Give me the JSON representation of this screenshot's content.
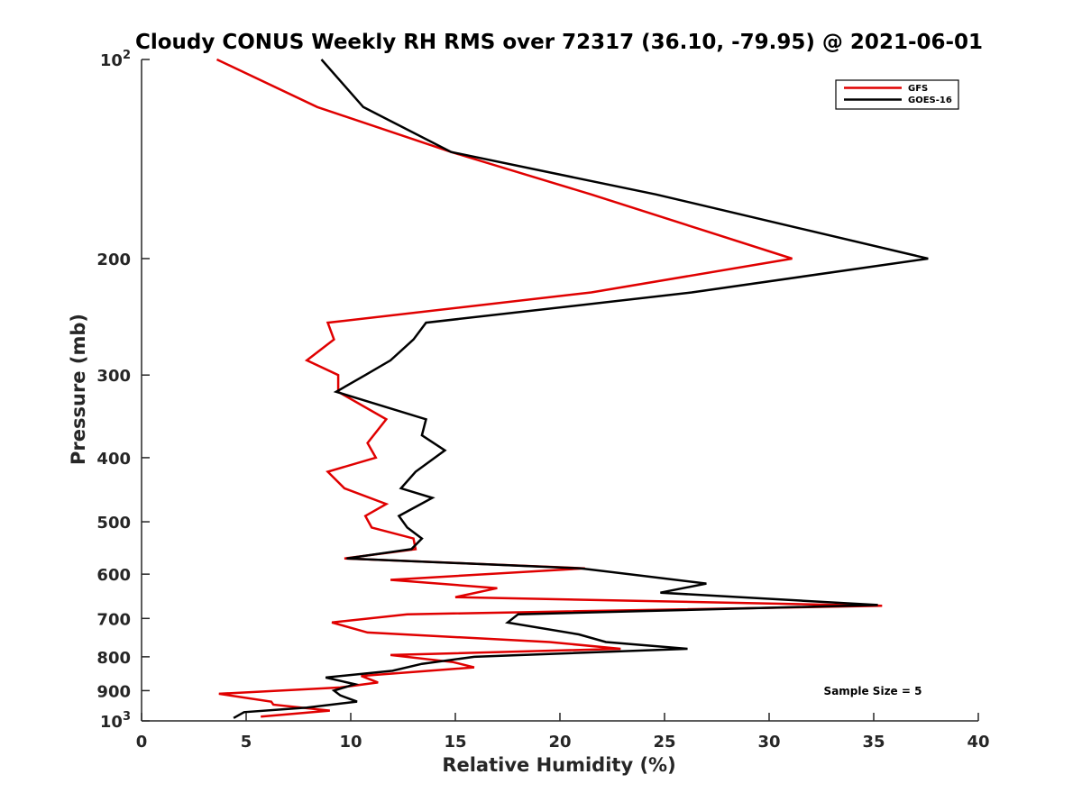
{
  "chart_data": {
    "type": "line",
    "title": "Cloudy CONUS Weekly RH RMS over 72317 (36.10, -79.95) @ 2021-06-01",
    "xlabel": "Relative Humidity (%)",
    "ylabel": "Pressure (mb)",
    "xlim": [
      0,
      40
    ],
    "ylim": [
      100,
      1000
    ],
    "y_scale": "log",
    "y_reversed": true,
    "x_ticks": [
      0,
      5,
      10,
      15,
      20,
      25,
      30,
      35,
      40
    ],
    "x_tick_labels": [
      "0",
      "5",
      "10",
      "15",
      "20",
      "25",
      "30",
      "35",
      "40"
    ],
    "y_ticks": [
      100,
      200,
      300,
      400,
      500,
      600,
      700,
      800,
      900,
      1000
    ],
    "y_tick_labels": [
      {
        "base": "10",
        "sup": "2"
      },
      {
        "base": "200",
        "sup": ""
      },
      {
        "base": "300",
        "sup": ""
      },
      {
        "base": "400",
        "sup": ""
      },
      {
        "base": "500",
        "sup": ""
      },
      {
        "base": "600",
        "sup": ""
      },
      {
        "base": "700",
        "sup": ""
      },
      {
        "base": "800",
        "sup": ""
      },
      {
        "base": "900",
        "sup": ""
      },
      {
        "base": "10",
        "sup": "3"
      }
    ],
    "grid": false,
    "legend_position": "top-right",
    "annotation": "Sample Size = 5",
    "series": [
      {
        "name": "GFS",
        "color": "#e00000",
        "points": [
          {
            "x": 3.6,
            "p": 100
          },
          {
            "x": 8.4,
            "p": 118
          },
          {
            "x": 14.8,
            "p": 138
          },
          {
            "x": 21.5,
            "p": 160
          },
          {
            "x": 31.1,
            "p": 200
          },
          {
            "x": 21.5,
            "p": 225
          },
          {
            "x": 8.9,
            "p": 250
          },
          {
            "x": 9.2,
            "p": 265
          },
          {
            "x": 7.9,
            "p": 285
          },
          {
            "x": 9.4,
            "p": 300
          },
          {
            "x": 9.4,
            "p": 318
          },
          {
            "x": 11.7,
            "p": 350
          },
          {
            "x": 10.8,
            "p": 380
          },
          {
            "x": 11.2,
            "p": 400
          },
          {
            "x": 8.9,
            "p": 420
          },
          {
            "x": 9.7,
            "p": 445
          },
          {
            "x": 11.7,
            "p": 470
          },
          {
            "x": 10.7,
            "p": 490
          },
          {
            "x": 11.0,
            "p": 510
          },
          {
            "x": 13.0,
            "p": 530
          },
          {
            "x": 13.1,
            "p": 550
          },
          {
            "x": 9.7,
            "p": 568
          },
          {
            "x": 21.2,
            "p": 588
          },
          {
            "x": 11.9,
            "p": 612
          },
          {
            "x": 17.0,
            "p": 630
          },
          {
            "x": 15.0,
            "p": 650
          },
          {
            "x": 35.4,
            "p": 670
          },
          {
            "x": 12.7,
            "p": 690
          },
          {
            "x": 9.1,
            "p": 710
          },
          {
            "x": 10.8,
            "p": 735
          },
          {
            "x": 19.5,
            "p": 760
          },
          {
            "x": 22.9,
            "p": 778
          },
          {
            "x": 11.9,
            "p": 795
          },
          {
            "x": 14.9,
            "p": 815
          },
          {
            "x": 15.9,
            "p": 830
          },
          {
            "x": 10.5,
            "p": 855
          },
          {
            "x": 11.3,
            "p": 875
          },
          {
            "x": 9.5,
            "p": 890
          },
          {
            "x": 3.7,
            "p": 910
          },
          {
            "x": 6.2,
            "p": 935
          },
          {
            "x": 6.3,
            "p": 945
          },
          {
            "x": 9.0,
            "p": 965
          },
          {
            "x": 5.7,
            "p": 985
          }
        ]
      },
      {
        "name": "GOES-16",
        "color": "#000000",
        "points": [
          {
            "x": 8.6,
            "p": 100
          },
          {
            "x": 10.6,
            "p": 118
          },
          {
            "x": 14.8,
            "p": 138
          },
          {
            "x": 24.6,
            "p": 160
          },
          {
            "x": 37.6,
            "p": 200
          },
          {
            "x": 26.3,
            "p": 225
          },
          {
            "x": 13.6,
            "p": 250
          },
          {
            "x": 13.0,
            "p": 265
          },
          {
            "x": 11.9,
            "p": 285
          },
          {
            "x": 10.7,
            "p": 300
          },
          {
            "x": 9.3,
            "p": 318
          },
          {
            "x": 13.6,
            "p": 350
          },
          {
            "x": 13.4,
            "p": 370
          },
          {
            "x": 14.5,
            "p": 390
          },
          {
            "x": 13.1,
            "p": 420
          },
          {
            "x": 12.4,
            "p": 445
          },
          {
            "x": 13.9,
            "p": 460
          },
          {
            "x": 12.3,
            "p": 490
          },
          {
            "x": 12.7,
            "p": 510
          },
          {
            "x": 13.4,
            "p": 530
          },
          {
            "x": 12.9,
            "p": 550
          },
          {
            "x": 9.8,
            "p": 568
          },
          {
            "x": 21.0,
            "p": 588
          },
          {
            "x": 27.0,
            "p": 620
          },
          {
            "x": 24.8,
            "p": 640
          },
          {
            "x": 35.2,
            "p": 668
          },
          {
            "x": 18.0,
            "p": 690
          },
          {
            "x": 17.5,
            "p": 710
          },
          {
            "x": 20.9,
            "p": 740
          },
          {
            "x": 22.2,
            "p": 760
          },
          {
            "x": 26.1,
            "p": 778
          },
          {
            "x": 15.9,
            "p": 800
          },
          {
            "x": 13.4,
            "p": 820
          },
          {
            "x": 12.0,
            "p": 840
          },
          {
            "x": 8.8,
            "p": 860
          },
          {
            "x": 10.2,
            "p": 880
          },
          {
            "x": 9.2,
            "p": 900
          },
          {
            "x": 9.5,
            "p": 915
          },
          {
            "x": 10.3,
            "p": 935
          },
          {
            "x": 7.9,
            "p": 955
          },
          {
            "x": 4.9,
            "p": 970
          },
          {
            "x": 4.4,
            "p": 990
          }
        ]
      }
    ]
  }
}
